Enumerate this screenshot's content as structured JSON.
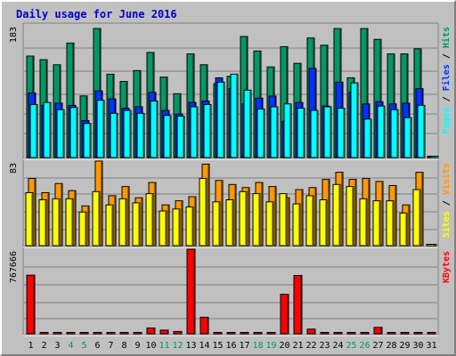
{
  "chart_data": {
    "type": "bar",
    "title": "Daily usage for June 2016",
    "categories": [
      "1",
      "2",
      "3",
      "4",
      "5",
      "6",
      "7",
      "8",
      "9",
      "10",
      "11",
      "12",
      "13",
      "14",
      "15",
      "16",
      "17",
      "18",
      "19",
      "20",
      "21",
      "22",
      "23",
      "24",
      "25",
      "26",
      "27",
      "28",
      "29",
      "30",
      "31"
    ],
    "weekend_days": [
      "4",
      "5",
      "11",
      "12",
      "18",
      "19",
      "25",
      "26"
    ],
    "panels": [
      {
        "name": "hits-files-pages",
        "ymax": 183,
        "ymax_label": "183",
        "ylabel_parts": [
          "Pages",
          "Files",
          "Hits"
        ],
        "series": [
          {
            "name": "Hits",
            "color": "#009966",
            "values": [
              140,
              135,
              128,
              158,
              85,
              178,
              115,
              105,
              120,
              145,
              111,
              88,
              143,
              128,
              102,
              112,
              167,
              147,
              125,
              153,
              130,
              165,
              155,
              178,
              110,
              178,
              163,
              143,
              143,
              150,
              0
            ]
          },
          {
            "name": "Files",
            "color": "#0033ff",
            "values": [
              89,
              72,
              75,
              72,
              51,
              92,
              81,
              68,
              70,
              90,
              65,
              60,
              76,
              78,
              110,
              95,
              74,
              82,
              85,
              50,
              76,
              123,
              71,
              104,
              90,
              74,
              77,
              74,
              75,
              95,
              0
            ]
          },
          {
            "name": "Pages",
            "color": "#00ffff",
            "values": [
              73,
              76,
              66,
              69,
              47,
              79,
              61,
              65,
              61,
              78,
              58,
              57,
              70,
              73,
              104,
              115,
              93,
              67,
              70,
              74,
              68,
              65,
              70,
              68,
              103,
              53,
              71,
              66,
              55,
              72,
              0
            ]
          }
        ]
      },
      {
        "name": "sites-visits",
        "ymax": 83,
        "ymax_label": "83",
        "ylabel_parts": [
          "Sites",
          "Visits"
        ],
        "series": [
          {
            "name": "Visits",
            "color": "#ff9900",
            "values": [
              66,
              52,
              61,
              54,
              39,
              83,
              49,
              58,
              47,
              62,
              40,
              44,
              48,
              80,
              64,
              60,
              57,
              62,
              58,
              47,
              55,
              57,
              65,
              72,
              65,
              66,
              63,
              59,
              40,
              72,
              0
            ]
          },
          {
            "name": "Sites",
            "color": "#ffff00",
            "values": [
              52,
              45,
              46,
              46,
              33,
              53,
              40,
              46,
              42,
              51,
              34,
              36,
              38,
              66,
              43,
              45,
              53,
              51,
              43,
              51,
              41,
              49,
              45,
              60,
              58,
              46,
              44,
              44,
              32,
              55,
              0
            ]
          }
        ]
      },
      {
        "name": "kbytes",
        "ymax": 767666,
        "ymax_label": "767666",
        "ylabel_parts": [
          "KBytes"
        ],
        "series": [
          {
            "name": "KBytes",
            "color": "#ff0000",
            "values": [
              532000,
              5000,
              5000,
              5000,
              5000,
              5000,
              5000,
              5000,
              5000,
              52000,
              33000,
              21000,
              767666,
              150000,
              5000,
              5000,
              10000,
              5000,
              5000,
              358000,
              529000,
              42000,
              5000,
              10000,
              5000,
              5000,
              58000,
              5000,
              5000,
              5000,
              5000
            ]
          }
        ]
      }
    ]
  }
}
